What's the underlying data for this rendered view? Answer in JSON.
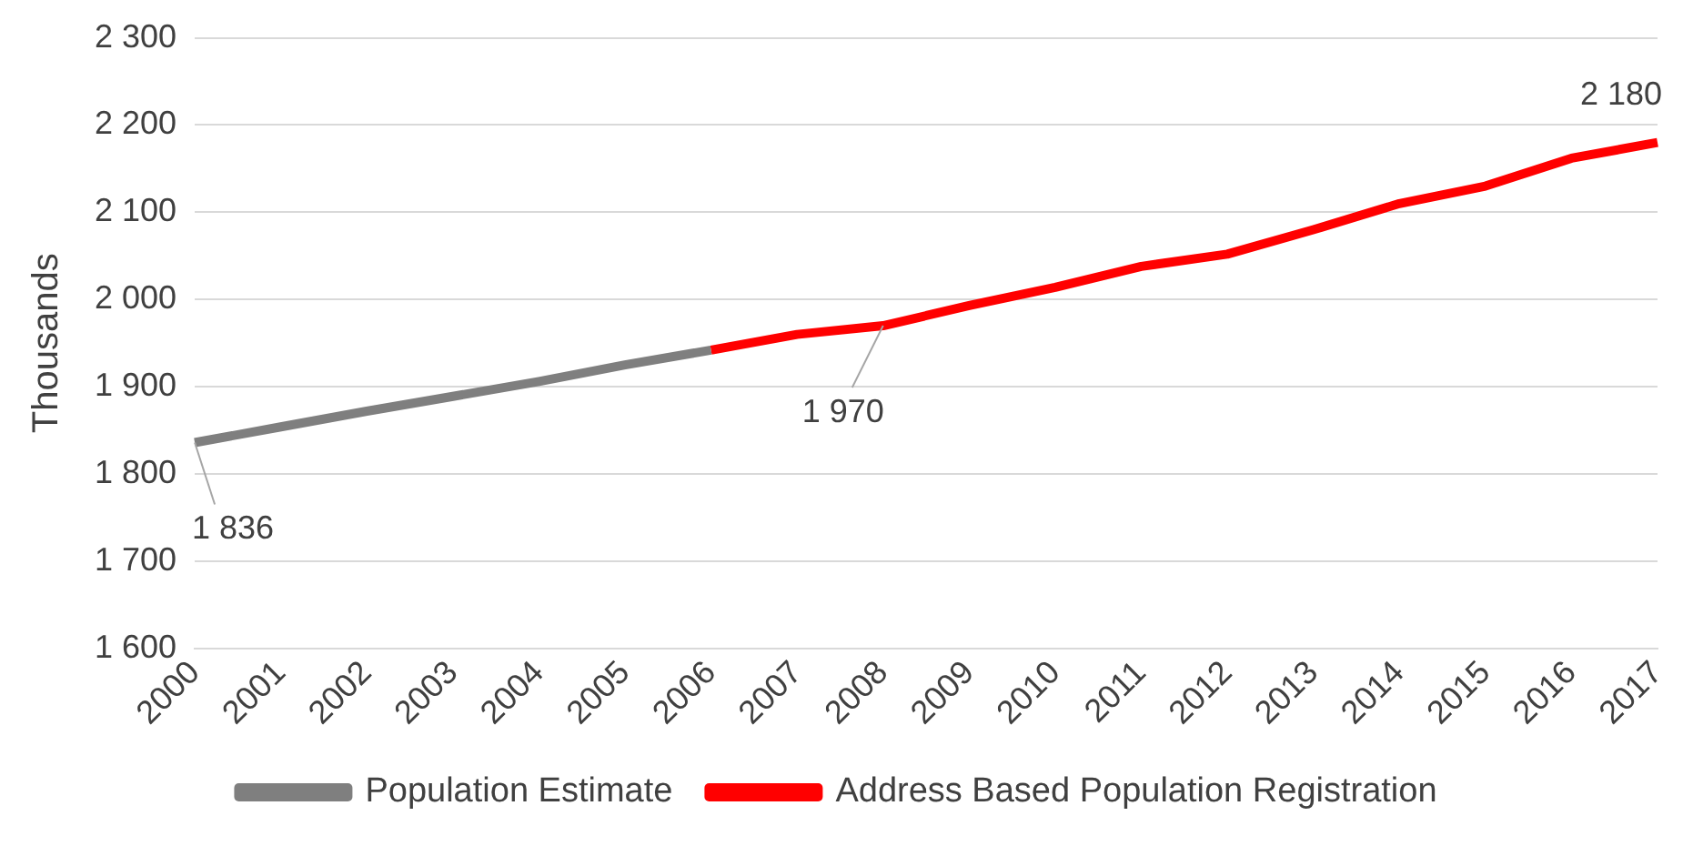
{
  "chart_data": {
    "type": "line",
    "ylabel": "Thousands",
    "categories": [
      "2000",
      "2001",
      "2002",
      "2003",
      "2004",
      "2005",
      "2006",
      "2007",
      "2008",
      "2009",
      "2010",
      "2011",
      "2012",
      "2013",
      "2014",
      "2015",
      "2016",
      "2017"
    ],
    "series": [
      {
        "name": "Population Estimate",
        "color": "#7f7f7f",
        "values": [
          1836,
          1854,
          1872,
          1889,
          1906,
          1925,
          1942,
          null,
          null,
          null,
          null,
          null,
          null,
          null,
          null,
          null,
          null,
          null
        ],
        "value_labels": [
          "1 836",
          null,
          null,
          null,
          null,
          null,
          null,
          null,
          null,
          null,
          null,
          null,
          null,
          null,
          null,
          null,
          null,
          null
        ]
      },
      {
        "name": "Address Based Population Registration",
        "color": "#ff0000",
        "values": [
          null,
          null,
          null,
          null,
          null,
          null,
          1942,
          1960,
          1970,
          1993,
          2014,
          2038,
          2052,
          2080,
          2110,
          2130,
          2162,
          2180
        ],
        "value_labels": [
          null,
          null,
          null,
          null,
          null,
          null,
          null,
          null,
          "1 970",
          null,
          null,
          null,
          null,
          null,
          null,
          null,
          null,
          "2 180"
        ]
      }
    ],
    "ylim": [
      1600,
      2300
    ],
    "yticks": [
      {
        "value": 1600,
        "label": "1 600"
      },
      {
        "value": 1700,
        "label": "1 700"
      },
      {
        "value": 1800,
        "label": "1 800"
      },
      {
        "value": 1900,
        "label": "1 900"
      },
      {
        "value": 2000,
        "label": "2 000"
      },
      {
        "value": 2100,
        "label": "2 100"
      },
      {
        "value": 2200,
        "label": "2 200"
      },
      {
        "value": 2300,
        "label": "2 300"
      }
    ],
    "grid": "y",
    "legend": "bottom",
    "marker": "none",
    "line_style": "solid"
  }
}
